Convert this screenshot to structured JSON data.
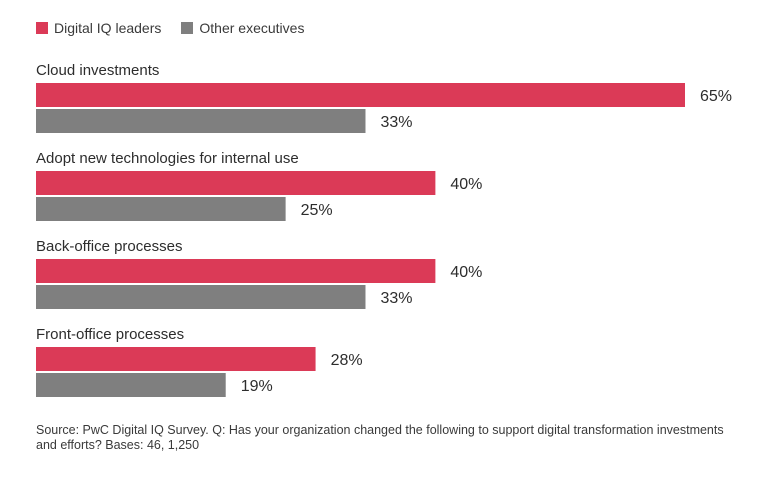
{
  "legend": {
    "leaders_label": "Digital IQ leaders",
    "others_label": "Other executives"
  },
  "source_note": "Source: PwC Digital IQ Survey. Q: Has your organization changed the following to support digital transformation investments and efforts? Bases: 46, 1,250",
  "colors": {
    "leaders": "#db3a57",
    "others": "#7f7f7f"
  },
  "chart_data": {
    "type": "bar",
    "orientation": "horizontal",
    "categories": [
      "Cloud investments",
      "Adopt new technologies for internal use",
      "Back-office processes",
      "Front-office processes"
    ],
    "series": [
      {
        "name": "Digital IQ leaders",
        "values": [
          65,
          40,
          40,
          28
        ]
      },
      {
        "name": "Other executives",
        "values": [
          33,
          25,
          33,
          19
        ]
      }
    ],
    "value_suffix": "%",
    "xlim": [
      0,
      65
    ],
    "grid": false,
    "legend_position": "top-left"
  }
}
